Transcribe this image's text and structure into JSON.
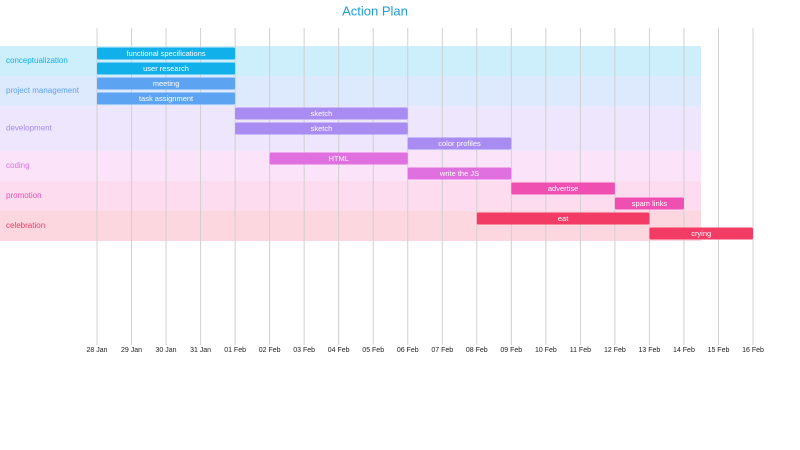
{
  "chart_data": {
    "type": "gantt",
    "title": "Action Plan",
    "dates": [
      "28 Jan",
      "29 Jan",
      "30 Jan",
      "31 Jan",
      "01 Feb",
      "02 Feb",
      "03 Feb",
      "04 Feb",
      "05 Feb",
      "06 Feb",
      "07 Feb",
      "08 Feb",
      "09 Feb",
      "10 Feb",
      "11 Feb",
      "12 Feb",
      "13 Feb",
      "14 Feb",
      "15 Feb",
      "16 Feb"
    ],
    "grid": true,
    "groups": [
      {
        "name": "conceptualization",
        "color": "#12b0ea",
        "band_color": "#cdeefb",
        "tasks": [
          {
            "name": "functional specifications",
            "start": "28 Jan",
            "end": "01 Feb"
          },
          {
            "name": "user research",
            "start": "28 Jan",
            "end": "01 Feb"
          }
        ]
      },
      {
        "name": "project management",
        "color": "#5ca4f2",
        "band_color": "#dde9fc",
        "tasks": [
          {
            "name": "meeting",
            "start": "28 Jan",
            "end": "01 Feb"
          },
          {
            "name": "task assignment",
            "start": "28 Jan",
            "end": "01 Feb"
          }
        ]
      },
      {
        "name": "development",
        "color": "#a88cf2",
        "band_color": "#ede6fd",
        "tasks": [
          {
            "name": "sketch",
            "start": "01 Feb",
            "end": "06 Feb"
          },
          {
            "name": "sketch",
            "start": "01 Feb",
            "end": "06 Feb"
          },
          {
            "name": "color profiles",
            "start": "06 Feb",
            "end": "09 Feb"
          }
        ]
      },
      {
        "name": "coding",
        "color": "#e070e0",
        "band_color": "#fbe3fa",
        "tasks": [
          {
            "name": "HTML",
            "start": "02 Feb",
            "end": "06 Feb"
          },
          {
            "name": "write the JS",
            "start": "06 Feb",
            "end": "09 Feb"
          }
        ]
      },
      {
        "name": "promotion",
        "color": "#f04fb2",
        "band_color": "#fddcef",
        "tasks": [
          {
            "name": "advertise",
            "start": "09 Feb",
            "end": "12 Feb"
          },
          {
            "name": "spam links",
            "start": "12 Feb",
            "end": "14 Feb"
          }
        ]
      },
      {
        "name": "celebration",
        "color": "#f23c66",
        "band_color": "#fdd7df",
        "tasks": [
          {
            "name": "eat",
            "start": "08 Feb",
            "end": "13 Feb"
          },
          {
            "name": "crying",
            "start": "13 Feb",
            "end": "16 Feb"
          }
        ]
      }
    ]
  }
}
